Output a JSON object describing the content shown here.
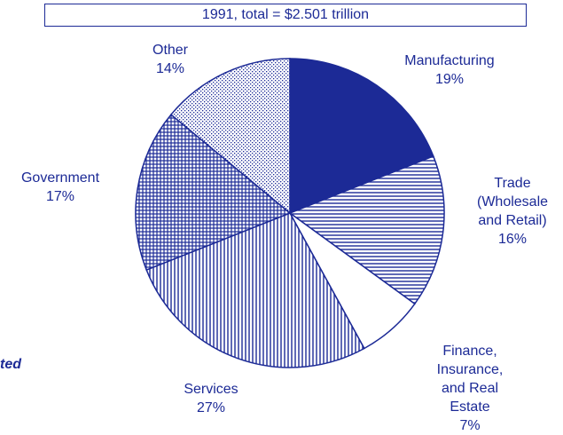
{
  "chart_data": {
    "type": "pie",
    "title": "1991, total = $2.501 trillion",
    "annotation": "ted",
    "categories": [
      "Manufacturing",
      "Trade\n(Wholesale\nand Retail)",
      "Finance, Insurance,\nand Real Estate",
      "Services",
      "Government",
      "Other"
    ],
    "values": [
      19,
      16,
      7,
      27,
      17,
      14
    ],
    "value_labels": [
      "19%",
      "16%",
      "7%",
      "27%",
      "17%",
      "14%"
    ],
    "color": "#1c2a96"
  }
}
